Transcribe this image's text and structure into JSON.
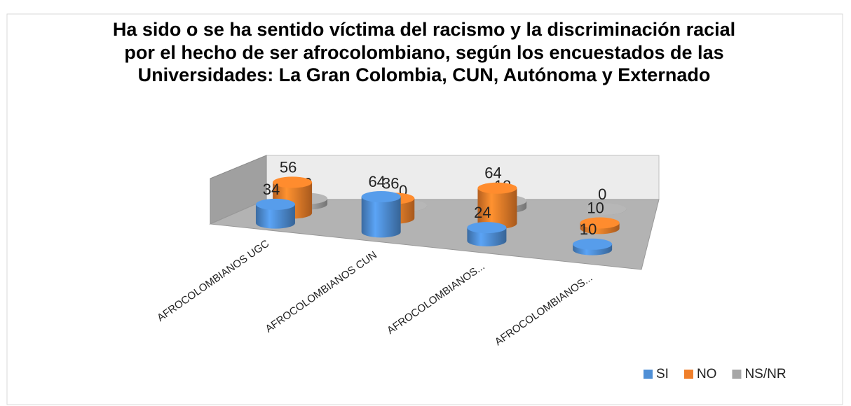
{
  "chart_data": {
    "type": "bar3d",
    "title": "Ha sido o se ha sentido víctima del racismo y la discriminación racial por el hecho de ser afrocolombiano, según los encuestados de las Universidades: La Gran Colombia, CUN, Autónoma y Externado",
    "categories": [
      "AFROCOLOMBIANOS UGC",
      "AFROCOLOMBIANOS CUN",
      "AFROCOLOMBIANOS...",
      "AFROCOLOMBIANOS..."
    ],
    "series": [
      {
        "name": "SI",
        "color": "#4f8fd6",
        "values": [
          34,
          64,
          24,
          10
        ]
      },
      {
        "name": "NO",
        "color": "#f07f2a",
        "values": [
          56,
          36,
          64,
          10
        ]
      },
      {
        "name": "NS/NR",
        "color": "#a6a6a6",
        "values": [
          10,
          0,
          12,
          0
        ]
      }
    ],
    "ylim": [
      0,
      70
    ],
    "legend": "bottom-right"
  }
}
